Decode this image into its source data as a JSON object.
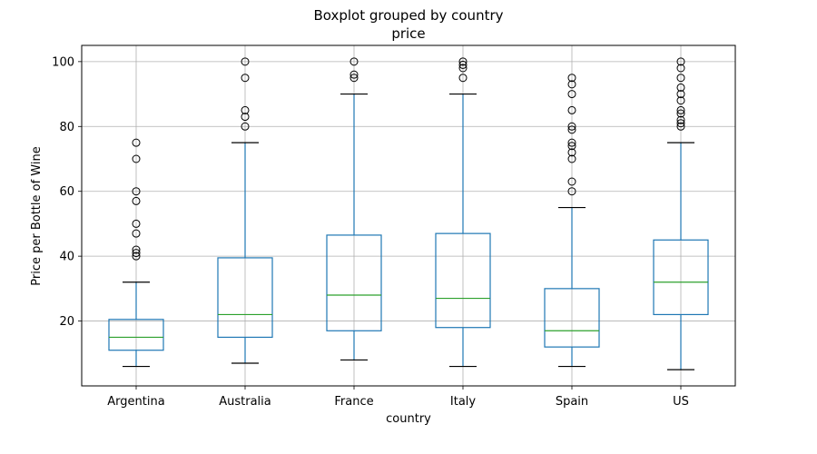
{
  "chart_data": {
    "type": "boxplot",
    "title": "Boxplot grouped by country",
    "subtitle": "price",
    "xlabel": "country",
    "ylabel": "Price per Bottle of Wine",
    "ylim": [
      0,
      105
    ],
    "yticks": [
      20,
      40,
      60,
      80,
      100
    ],
    "grid": true,
    "colors": {
      "box": "#1f77b4",
      "median": "#2ca02c",
      "whisker_cap": "#000000",
      "grid": "#b0b0b0",
      "flier": "#000000"
    },
    "categories": [
      "Argentina",
      "Australia",
      "France",
      "Italy",
      "Spain",
      "US"
    ],
    "boxes": [
      {
        "name": "Argentina",
        "whislo": 6,
        "q1": 11,
        "med": 15,
        "q3": 20.5,
        "whishi": 32,
        "fliers": [
          40,
          41,
          42,
          47,
          50,
          57,
          60,
          70,
          75
        ]
      },
      {
        "name": "Australia",
        "whislo": 7,
        "q1": 15,
        "med": 22,
        "q3": 39.5,
        "whishi": 75,
        "fliers": [
          80,
          83,
          85,
          95,
          100
        ]
      },
      {
        "name": "France",
        "whislo": 8,
        "q1": 17,
        "med": 28,
        "q3": 46.5,
        "whishi": 90,
        "fliers": [
          95,
          96,
          100
        ]
      },
      {
        "name": "Italy",
        "whislo": 6,
        "q1": 18,
        "med": 27,
        "q3": 47,
        "whishi": 90,
        "fliers": [
          95,
          98,
          99,
          100
        ]
      },
      {
        "name": "Spain",
        "whislo": 6,
        "q1": 12,
        "med": 17,
        "q3": 30,
        "whishi": 55,
        "fliers": [
          60,
          63,
          70,
          72,
          74,
          75,
          79,
          80,
          85,
          90,
          93,
          95
        ]
      },
      {
        "name": "US",
        "whislo": 5,
        "q1": 22,
        "med": 32,
        "q3": 45,
        "whishi": 75,
        "fliers": [
          80,
          81,
          82,
          84,
          85,
          88,
          90,
          92,
          95,
          98,
          100
        ]
      }
    ]
  }
}
